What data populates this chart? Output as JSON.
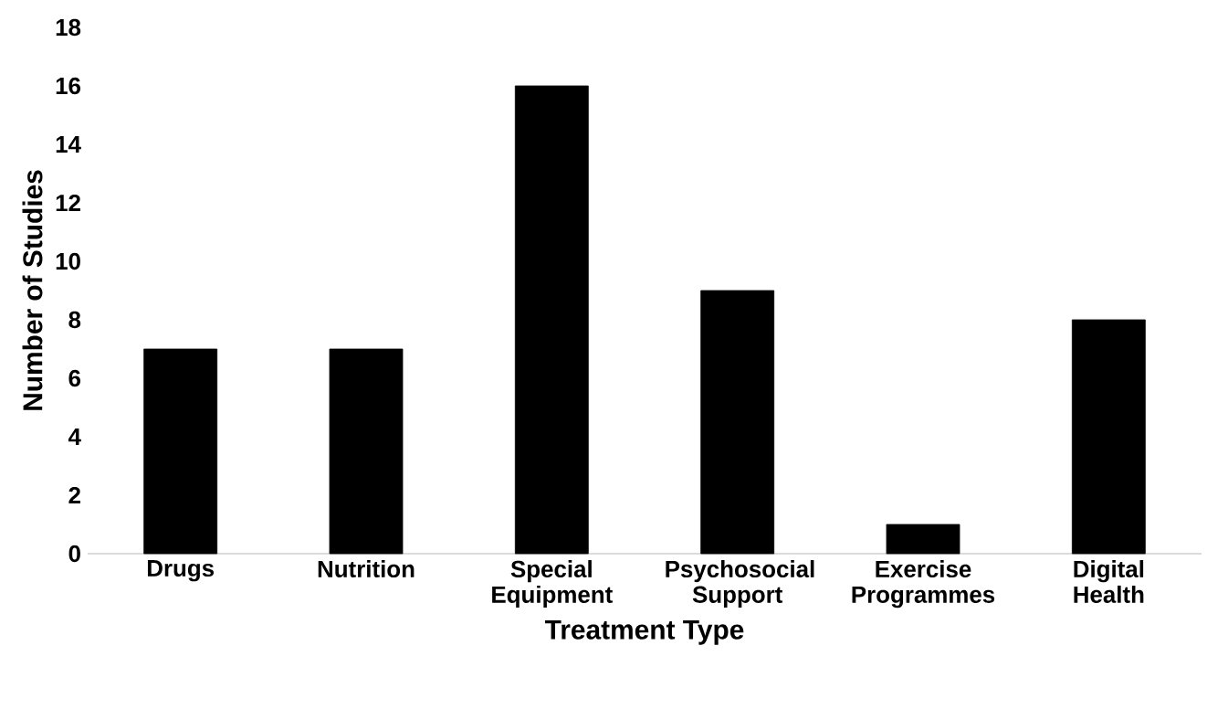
{
  "chart_data": {
    "type": "bar",
    "xlabel": "Treatment Type",
    "ylabel": "Number of Studies",
    "categories": [
      "Drugs",
      "Nutrition",
      "Special Equipment",
      "Psychosocial Support",
      "Exercise Programmes",
      "Digital Health"
    ],
    "values": [
      7,
      7,
      16,
      9,
      1,
      8
    ],
    "color": "#000000",
    "ylim": [
      0,
      18
    ],
    "yticks": [
      0,
      2,
      4,
      6,
      8,
      10,
      12,
      14,
      16,
      18
    ]
  }
}
